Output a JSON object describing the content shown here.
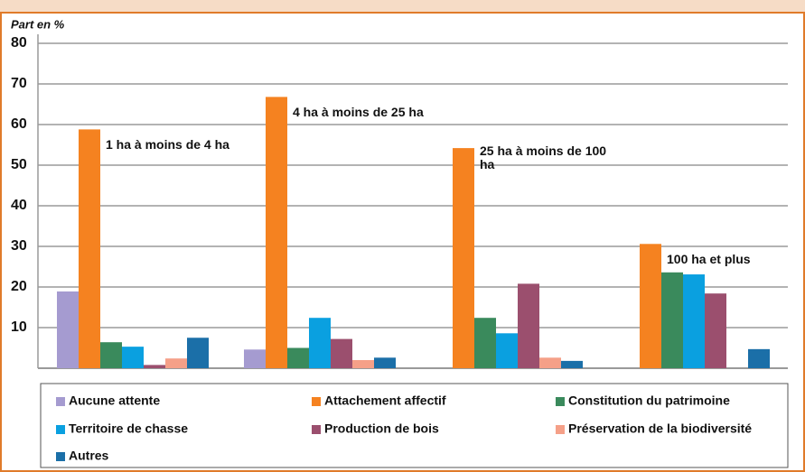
{
  "chart_data": {
    "type": "bar",
    "y_label": "Part en %",
    "categories": [
      "1 ha à moins de 4 ha",
      "4 ha à moins de 25 ha",
      "25 ha à moins de 100 ha",
      "100 ha et plus"
    ],
    "series": [
      {
        "name": "Aucune attente",
        "color": "#a59bd0",
        "values": [
          18.9,
          4.6,
          null,
          null
        ]
      },
      {
        "name": "Attachement affectif",
        "color": "#f58220",
        "values": [
          58.8,
          66.8,
          54.2,
          30.6
        ]
      },
      {
        "name": "Constitution du patrimoine",
        "color": "#3a8a5c",
        "values": [
          6.4,
          5.0,
          12.4,
          23.6
        ]
      },
      {
        "name": "Territoire de chasse",
        "color": "#0aa0e0",
        "values": [
          5.3,
          12.4,
          8.6,
          23.1
        ]
      },
      {
        "name": "Production de bois",
        "color": "#9b4f6e",
        "values": [
          0.8,
          7.2,
          20.8,
          18.4
        ]
      },
      {
        "name": "Préservation de la biodiversité",
        "color": "#f5a088",
        "values": [
          2.4,
          2.0,
          2.6,
          null
        ]
      },
      {
        "name": "Autres",
        "color": "#1b6fa8",
        "values": [
          7.5,
          2.6,
          1.8,
          4.7
        ]
      }
    ],
    "ylim": [
      0,
      80
    ],
    "yticks": [
      10,
      20,
      30,
      40,
      50,
      60,
      70,
      80
    ],
    "grid": true
  }
}
